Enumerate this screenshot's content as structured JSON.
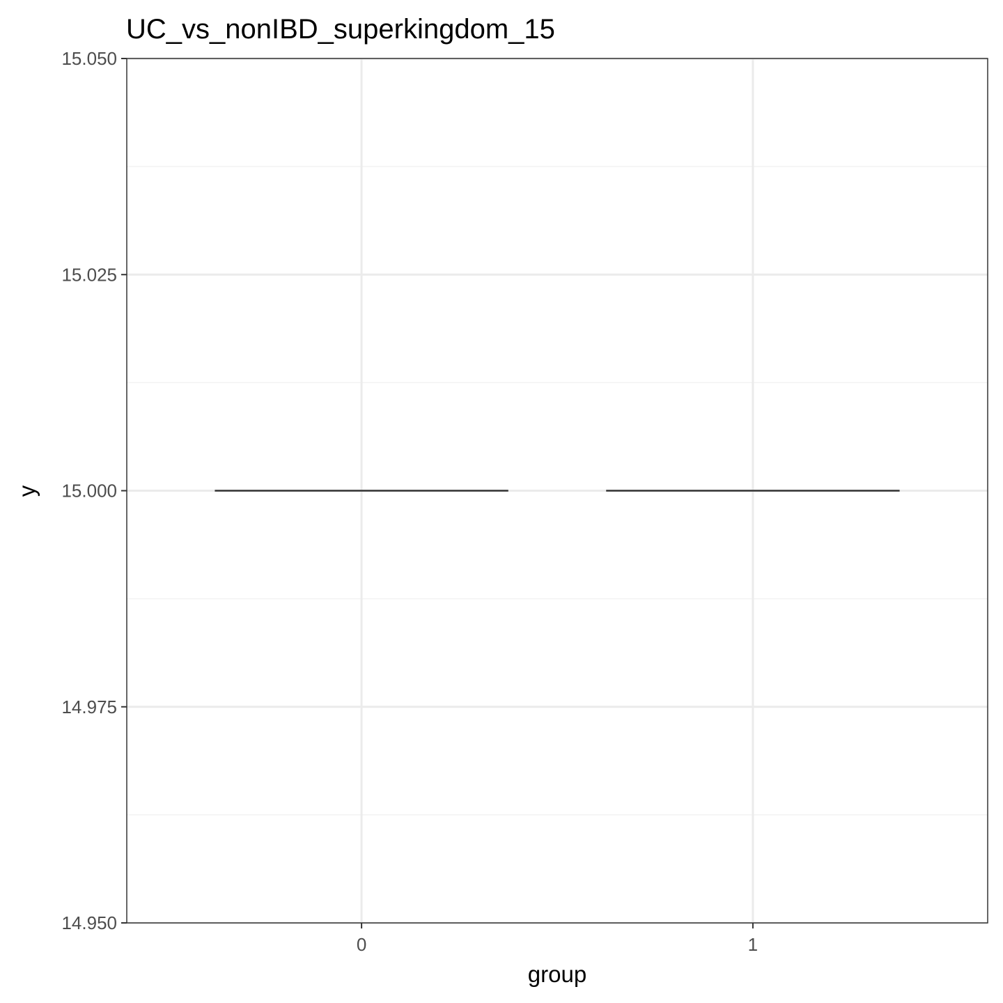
{
  "chart_data": {
    "type": "boxplot",
    "title": "UC_vs_nonIBD_superkingdom_15",
    "xlabel": "group",
    "ylabel": "y",
    "categories": [
      "0",
      "1"
    ],
    "series": [
      {
        "boxes": [
          {
            "category": "0",
            "min": 15.0,
            "q1": 15.0,
            "median": 15.0,
            "q3": 15.0,
            "max": 15.0
          },
          {
            "category": "1",
            "min": 15.0,
            "q1": 15.0,
            "median": 15.0,
            "q3": 15.0,
            "max": 15.0
          }
        ]
      }
    ],
    "ylim": [
      14.95,
      15.05
    ],
    "yticks": [
      14.95,
      14.975,
      15.0,
      15.025,
      15.05
    ],
    "ytick_labels": [
      "14.950",
      "14.975",
      "15.000",
      "15.025",
      "15.050"
    ],
    "grid": true,
    "legend": "none",
    "colors": {
      "panel_border": "#333333",
      "grid_major": "#ebebeb",
      "grid_minor": "#f2f2f2",
      "box_line": "#333333",
      "tick_text": "#4d4d4d",
      "axis_text": "#000000"
    }
  }
}
